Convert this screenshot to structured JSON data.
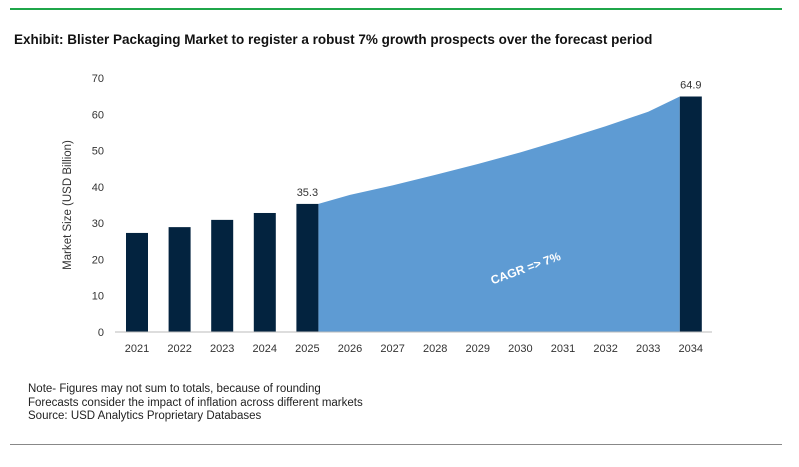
{
  "title": "Exhibit: Blister Packaging Market to register a robust 7% growth prospects over the forecast period",
  "notes": [
    "Note- Figures may not sum to totals, because of rounding",
    "Forecasts consider the impact of inflation across different markets",
    "Source: USD Analytics Proprietary Databases"
  ],
  "chart_data": {
    "type": "bar",
    "title": "",
    "xlabel": "",
    "ylabel": "Market Size (USD Billion)",
    "ylim": [
      0,
      70
    ],
    "yticks": [
      0,
      10,
      20,
      30,
      40,
      50,
      60,
      70
    ],
    "categories": [
      "2021",
      "2022",
      "2023",
      "2024",
      "2025",
      "2026",
      "2027",
      "2028",
      "2029",
      "2030",
      "2031",
      "2032",
      "2033",
      "2034"
    ],
    "bars": [
      27.3,
      28.9,
      30.9,
      32.8,
      35.3,
      null,
      null,
      null,
      null,
      null,
      null,
      null,
      null,
      64.9
    ],
    "area_forecast": [
      null,
      null,
      null,
      null,
      35.3,
      37.8,
      40.4,
      43.3,
      46.3,
      49.5,
      53.0,
      56.7,
      60.7,
      64.9
    ],
    "data_labels": {
      "2025": "35.3",
      "2034": "64.9"
    },
    "annotation": "CAGR =>  7%",
    "grid": false,
    "colors": {
      "bar": "#03233f",
      "area": "#5e9bd3"
    }
  }
}
